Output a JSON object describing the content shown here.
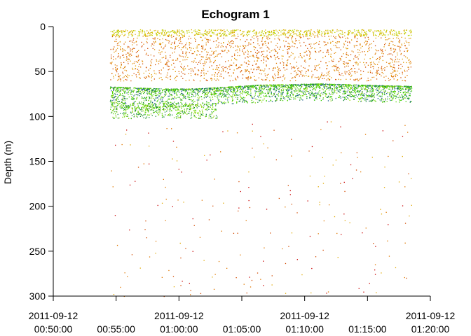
{
  "chart_data": {
    "type": "scatter",
    "title": "Echogram 1",
    "xlabel": "",
    "ylabel": "Depth (m)",
    "x_range": [
      "2011-09-12 00:50:00",
      "2011-09-12 01:20:00"
    ],
    "y_range": [
      300,
      0
    ],
    "y_inverted": true,
    "grid": false,
    "x_ticks": [
      {
        "value": "2011-09-12 00:50:00",
        "date": "2011-09-12",
        "time": "00:50:00"
      },
      {
        "value": "2011-09-12 00:55:00",
        "date": "",
        "time": "00:55:00"
      },
      {
        "value": "2011-09-12 01:00:00",
        "date": "2011-09-12",
        "time": "01:00:00"
      },
      {
        "value": "2011-09-12 01:05:00",
        "date": "",
        "time": "01:05:00"
      },
      {
        "value": "2011-09-12 01:10:00",
        "date": "2011-09-12",
        "time": "01:10:00"
      },
      {
        "value": "2011-09-12 01:15:00",
        "date": "",
        "time": "01:15:00"
      },
      {
        "value": "2011-09-12 01:20:00",
        "date": "2011-09-12",
        "time": "01:20:00"
      }
    ],
    "y_ticks": [
      0,
      50,
      100,
      150,
      200,
      250,
      300
    ],
    "data_time_range": [
      "2011-09-12 00:54:30",
      "2011-09-12 01:18:30"
    ],
    "layers": [
      {
        "name": "surface",
        "depth_range": [
          3,
          10
        ],
        "colors": [
          "#d4c400",
          "#e0a800",
          "#b8d400"
        ]
      },
      {
        "name": "upper-scatter",
        "depth_range": [
          10,
          60
        ],
        "colors": [
          "#e07800",
          "#d24a00",
          "#e09a00"
        ]
      },
      {
        "name": "dense-layer",
        "depth_top": [
          58,
          60,
          62,
          62,
          60,
          58,
          58,
          57,
          58,
          59,
          60
        ],
        "depth_bottom": [
          92,
          92,
          90,
          88,
          86,
          84,
          82,
          82,
          83,
          84,
          84
        ],
        "colors": [
          "#55d400",
          "#33cc00",
          "#1a8c3a",
          "#1a5a8c",
          "#88d400"
        ]
      },
      {
        "name": "lower-patch",
        "time_range": [
          "2011-09-12 00:54:30",
          "2011-09-12 01:03:00"
        ],
        "depth_range": [
          85,
          102
        ],
        "colors": [
          "#55d400",
          "#1a8c3a",
          "#88d400"
        ]
      },
      {
        "name": "deep-noise",
        "depth_range": [
          105,
          300
        ],
        "colors": [
          "#d24a00",
          "#c80000",
          "#e0a800",
          "#e07800"
        ]
      }
    ]
  }
}
